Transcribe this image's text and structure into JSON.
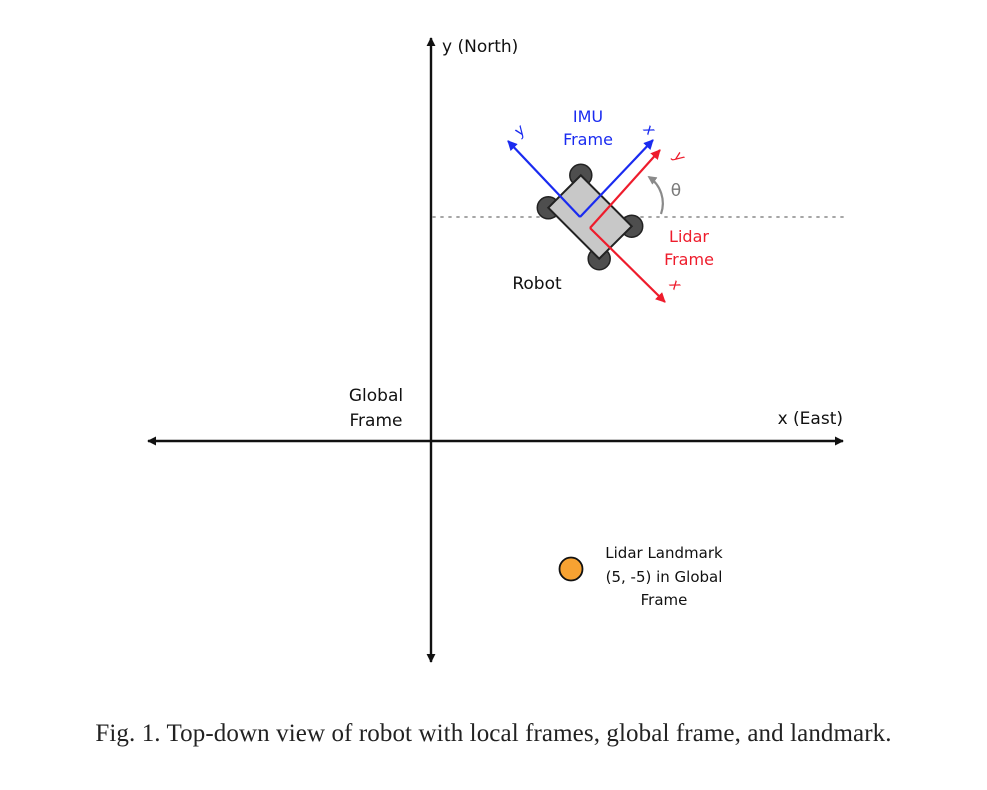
{
  "axes": {
    "y_label": "y (North)",
    "x_label": "x (East)",
    "global_frame_label": [
      "Global",
      "Frame"
    ]
  },
  "robot": {
    "label": "Robot",
    "heading_symbol": "θ"
  },
  "imu_frame": {
    "label": [
      "IMU",
      "Frame"
    ],
    "x_axis_label": "x",
    "y_axis_label": "y",
    "color": "#1a2bf0"
  },
  "lidar_frame": {
    "label": [
      "Lidar",
      "Frame"
    ],
    "x_axis_label": "x",
    "y_axis_label": "y",
    "color": "#ee1c2c"
  },
  "landmark": {
    "label": [
      "Lidar Landmark",
      "(5, -5) in Global",
      "Frame"
    ],
    "fill": "#f7a232"
  },
  "caption": "Fig. 1.  Top-down view of robot with local frames, global frame, and landmark."
}
